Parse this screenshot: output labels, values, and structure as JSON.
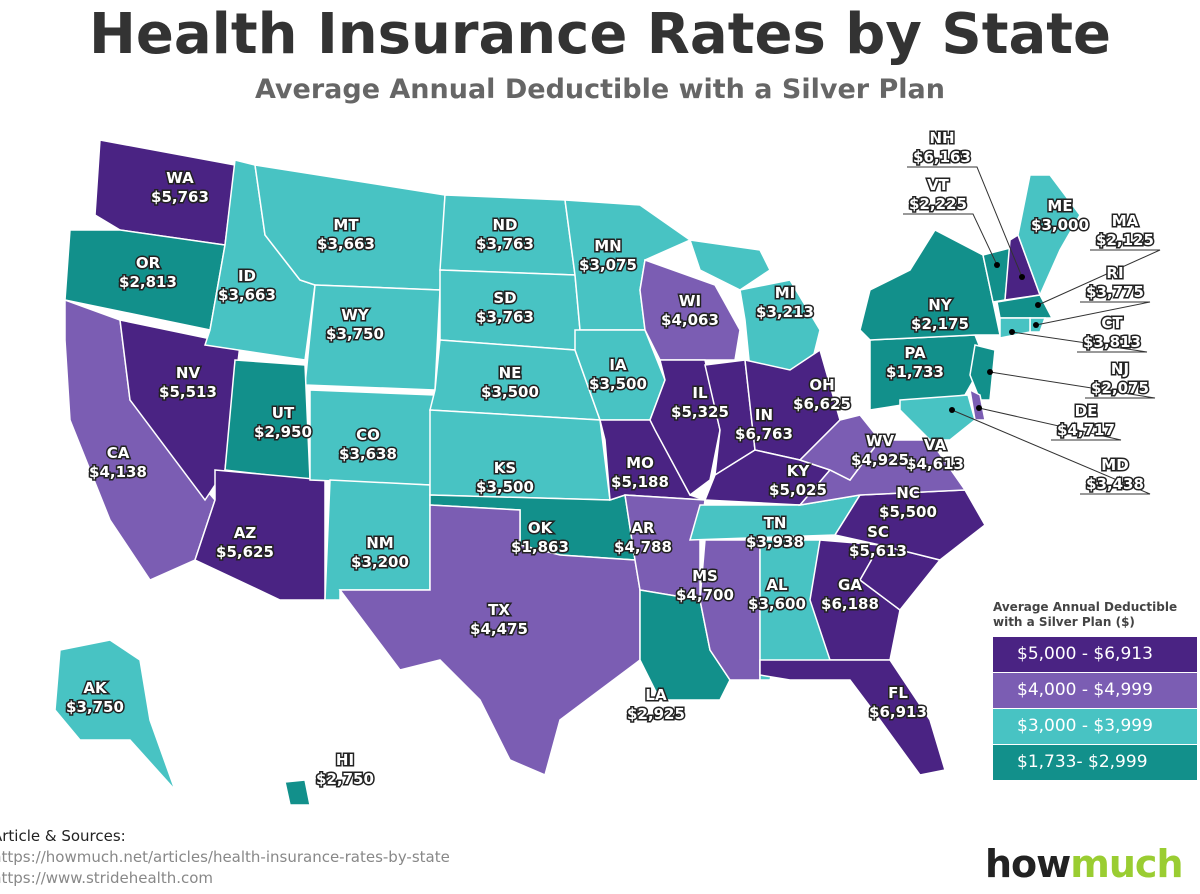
{
  "title": "Health Insurance Rates by State",
  "subtitle": "Average Annual Deductible with a Silver Plan",
  "tiers": {
    "t1": "#4a2383",
    "t2": "#7b5db3",
    "t3": "#48c3c3",
    "t4": "#12908b"
  },
  "legend": {
    "title": "Average Annual Deductible with a Silver Plan ($)",
    "items": [
      {
        "label": "$5,000 - $6,913",
        "color": "#4a2383"
      },
      {
        "label": "$4,000 - $4,999",
        "color": "#7b5db3"
      },
      {
        "label": "$3,000 - $3,999",
        "color": "#48c3c3"
      },
      {
        "label": "$1,733- $2,999",
        "color": "#12908b"
      }
    ]
  },
  "states": [
    {
      "abbr": "WA",
      "value": "$5,763",
      "tier": "t1"
    },
    {
      "abbr": "OR",
      "value": "$2,813",
      "tier": "t4"
    },
    {
      "abbr": "CA",
      "value": "$4,138",
      "tier": "t2"
    },
    {
      "abbr": "NV",
      "value": "$5,513",
      "tier": "t1"
    },
    {
      "abbr": "ID",
      "value": "$3,663",
      "tier": "t3"
    },
    {
      "abbr": "MT",
      "value": "$3,663",
      "tier": "t3"
    },
    {
      "abbr": "WY",
      "value": "$3,750",
      "tier": "t3"
    },
    {
      "abbr": "UT",
      "value": "$2,950",
      "tier": "t4"
    },
    {
      "abbr": "AZ",
      "value": "$5,625",
      "tier": "t1"
    },
    {
      "abbr": "CO",
      "value": "$3,638",
      "tier": "t3"
    },
    {
      "abbr": "NM",
      "value": "$3,200",
      "tier": "t3"
    },
    {
      "abbr": "ND",
      "value": "$3,763",
      "tier": "t3"
    },
    {
      "abbr": "SD",
      "value": "$3,763",
      "tier": "t3"
    },
    {
      "abbr": "NE",
      "value": "$3,500",
      "tier": "t3"
    },
    {
      "abbr": "KS",
      "value": "$3,500",
      "tier": "t3"
    },
    {
      "abbr": "OK",
      "value": "$1,863",
      "tier": "t4"
    },
    {
      "abbr": "TX",
      "value": "$4,475",
      "tier": "t2"
    },
    {
      "abbr": "MN",
      "value": "$3,075",
      "tier": "t3"
    },
    {
      "abbr": "IA",
      "value": "$3,500",
      "tier": "t3"
    },
    {
      "abbr": "MO",
      "value": "$5,188",
      "tier": "t1"
    },
    {
      "abbr": "AR",
      "value": "$4,788",
      "tier": "t2"
    },
    {
      "abbr": "LA",
      "value": "$2,925",
      "tier": "t4"
    },
    {
      "abbr": "WI",
      "value": "$4,063",
      "tier": "t2"
    },
    {
      "abbr": "IL",
      "value": "$5,325",
      "tier": "t1"
    },
    {
      "abbr": "MI",
      "value": "$3,213",
      "tier": "t3"
    },
    {
      "abbr": "IN",
      "value": "$6,763",
      "tier": "t1"
    },
    {
      "abbr": "OH",
      "value": "$6,625",
      "tier": "t1"
    },
    {
      "abbr": "KY",
      "value": "$5,025",
      "tier": "t1"
    },
    {
      "abbr": "TN",
      "value": "$3,938",
      "tier": "t3"
    },
    {
      "abbr": "MS",
      "value": "$4,700",
      "tier": "t2"
    },
    {
      "abbr": "AL",
      "value": "$3,600",
      "tier": "t3"
    },
    {
      "abbr": "GA",
      "value": "$6,188",
      "tier": "t1"
    },
    {
      "abbr": "FL",
      "value": "$6,913",
      "tier": "t1"
    },
    {
      "abbr": "SC",
      "value": "$5,613",
      "tier": "t1"
    },
    {
      "abbr": "NC",
      "value": "$5,500",
      "tier": "t1"
    },
    {
      "abbr": "VA",
      "value": "$4,613",
      "tier": "t2"
    },
    {
      "abbr": "WV",
      "value": "$4,925",
      "tier": "t2"
    },
    {
      "abbr": "PA",
      "value": "$1,733",
      "tier": "t4"
    },
    {
      "abbr": "NY",
      "value": "$2,175",
      "tier": "t4"
    },
    {
      "abbr": "VT",
      "value": "$2,225",
      "tier": "t4"
    },
    {
      "abbr": "NH",
      "value": "$6,163",
      "tier": "t1"
    },
    {
      "abbr": "ME",
      "value": "$3,000",
      "tier": "t3"
    },
    {
      "abbr": "MA",
      "value": "$2,125",
      "tier": "t4"
    },
    {
      "abbr": "RI",
      "value": "$3,775",
      "tier": "t3"
    },
    {
      "abbr": "CT",
      "value": "$3,813",
      "tier": "t3"
    },
    {
      "abbr": "NJ",
      "value": "$2,075",
      "tier": "t4"
    },
    {
      "abbr": "DE",
      "value": "$4,717",
      "tier": "t2"
    },
    {
      "abbr": "MD",
      "value": "$3,438",
      "tier": "t3"
    },
    {
      "abbr": "AK",
      "value": "$3,750",
      "tier": "t3"
    },
    {
      "abbr": "HI",
      "value": "$2,750",
      "tier": "t4"
    }
  ],
  "sources": {
    "heading": "Article & Sources:",
    "links": [
      "https://howmuch.net/articles/health-insurance-rates-by-state",
      "https://www.stridehealth.com"
    ]
  },
  "logo": {
    "part1": "how",
    "part2": "much"
  }
}
